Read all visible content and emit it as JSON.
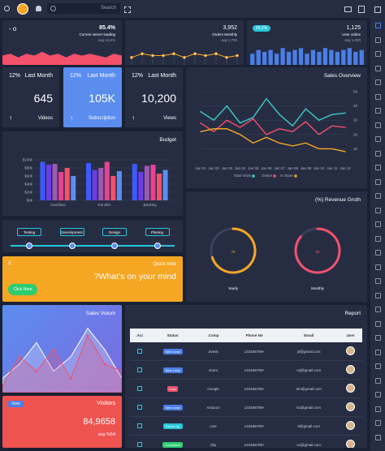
{
  "topbar": {
    "search": "Search"
  },
  "server_card": {
    "value": "85.4%",
    "label": "Current server loading",
    "avg": "avg 24.6%",
    "chart": {
      "type": "area",
      "color": "#f4516c",
      "ylim": [
        0,
        10
      ],
      "values": [
        5,
        6,
        4,
        6,
        5,
        7,
        5,
        6,
        4,
        6,
        5,
        6,
        5,
        4,
        6,
        5
      ]
    }
  },
  "orders_card": {
    "value": "3,952",
    "label": "Orders Monthly",
    "avg": "avg 1,700",
    "chart": {
      "type": "line",
      "color": "#f5a623",
      "ylim": [
        0,
        10
      ],
      "values": [
        4,
        6,
        5,
        5,
        6,
        4,
        6,
        5,
        6,
        4,
        5
      ]
    }
  },
  "users_card": {
    "badge": "69.2%",
    "value": "1,125",
    "label": "User online",
    "avg": "avg 1,000",
    "chart": {
      "type": "bar",
      "color": "#4a7ee8",
      "ylim": [
        0,
        10
      ],
      "values": [
        6,
        8,
        7,
        8,
        6,
        9,
        7,
        8,
        9,
        6,
        8,
        7,
        9,
        8,
        7,
        8,
        9,
        7,
        8
      ]
    }
  },
  "stats": [
    {
      "percent": "12%",
      "period": "Last Month",
      "value": "645",
      "label": "Videos"
    },
    {
      "percent": "12%",
      "period": "Last Month",
      "value": "105K",
      "label": "Subscription"
    },
    {
      "percent": "12%",
      "period": "Last Month",
      "value": "10,200",
      "label": "Views"
    }
  ],
  "sales_overview": {
    "title": "Sales Overview",
    "chart": {
      "type": "line",
      "x": [
        "Jan 01",
        "Jan 02",
        "Jan 03",
        "Jan 04",
        "Jan 05",
        "Jan 06",
        "Jan 07",
        "Jan 08",
        "Jan 09",
        "Jan 10",
        "Jan 11",
        "Jan 12"
      ],
      "ylim": [
        0,
        50
      ],
      "yticks": [
        10,
        20,
        30,
        40,
        50
      ],
      "grid": true,
      "series": [
        {
          "name": "Total Visits",
          "color": "#3ecbc8",
          "dashed": true,
          "values": [
            36,
            30,
            40,
            28,
            32,
            45,
            34,
            26,
            38,
            30,
            34,
            35
          ]
        },
        {
          "name": "Online",
          "color": "#f4516c",
          "dashed": true,
          "values": [
            28,
            22,
            30,
            25,
            31,
            20,
            24,
            22,
            29,
            20,
            26,
            25
          ]
        },
        {
          "name": "In Store",
          "color": "#f5a623",
          "dashed": false,
          "values": [
            22,
            24,
            24,
            20,
            14,
            18,
            14,
            12,
            14,
            10,
            10,
            8
          ]
        }
      ]
    }
  },
  "budget": {
    "title": "Budget",
    "chart": {
      "type": "bar",
      "categories": [
        "Cashflow",
        "Transfer",
        "Banking"
      ],
      "ylim": [
        0,
        100
      ],
      "yticks": [
        {
          "value": 0,
          "label": "$0k"
        },
        {
          "value": 20,
          "label": "$20k"
        },
        {
          "value": 40,
          "label": "$40k"
        },
        {
          "value": 60,
          "label": "$60k"
        },
        {
          "value": 80,
          "label": "$80k"
        },
        {
          "value": 100,
          "label": "$100k"
        }
      ],
      "grid": true,
      "series": [
        {
          "color": "#3d5afe",
          "values": [
            95,
            92,
            90
          ]
        },
        {
          "color": "#6a3de8",
          "values": [
            88,
            75,
            70
          ]
        },
        {
          "color": "#9b59b6",
          "values": [
            90,
            80,
            85
          ]
        },
        {
          "color": "#e84393",
          "values": [
            70,
            95,
            88
          ]
        },
        {
          "color": "#f4516c",
          "values": [
            80,
            60,
            66
          ]
        },
        {
          "color": "#5b8def",
          "values": [
            60,
            72,
            75
          ]
        }
      ]
    }
  },
  "revenue": {
    "title": "(%) Revenue Groth",
    "range": [
      0,
      100
    ],
    "gauges": [
      {
        "value": 70,
        "label": "Yearly",
        "color": "#f5a623"
      },
      {
        "value": 86,
        "label": "Monthly",
        "color": "#f4516c"
      }
    ]
  },
  "timeline": [
    "Testing",
    "Development",
    "Design",
    "Planing"
  ],
  "quick_note": {
    "title": "Quick note",
    "text": "?What's on your mind",
    "button": "Click Here"
  },
  "sales_volume": {
    "title": "Sales Volum",
    "chart": {
      "type": "area",
      "ylim": [
        0,
        10
      ],
      "series": [
        {
          "color": "#ffffff",
          "values": [
            2,
            4,
            7,
            3,
            5,
            9,
            6,
            2
          ]
        },
        {
          "color": "#f4516c",
          "values": [
            1,
            5,
            3,
            6,
            2,
            8,
            4,
            3
          ]
        }
      ]
    }
  },
  "visitors": {
    "badge": "View",
    "title": "Visitors",
    "value": "84,9658",
    "avg": "avg %54"
  },
  "report": {
    "title": "Report",
    "headers": [
      ".Act",
      "Status",
      ".Comp",
      "Phone No",
      "Email",
      "User"
    ],
    "rows": [
      {
        "status": "New Lead",
        "status_color": "#4a7ee8",
        "comp": "Jivesk",
        "phone": "123456789+",
        "email": "jd@gmail.com"
      },
      {
        "status": "New Lead",
        "status_color": "#4a7ee8",
        "comp": "Dumi",
        "phone": "123456789+",
        "email": "mj@gmail.com"
      },
      {
        "status": "Lost",
        "status_color": "#f4516c",
        "comp": "Google",
        "phone": "123456789+",
        "email": "dm@gmail.com"
      },
      {
        "status": "New Lead",
        "status_color": "#4a7ee8",
        "comp": "Amazon",
        "phone": "123456789+",
        "email": "ks@gmail.com"
      },
      {
        "status": "Follow Up",
        "status_color": "#26c6da",
        "comp": "Live",
        "phone": "123456789+",
        "email": "tt@gmail.com"
      },
      {
        "status": "Converted",
        "status_color": "#2ecc71",
        "comp": "Sky",
        "phone": "123456789+",
        "email": "ss@gmail.com"
      }
    ]
  }
}
